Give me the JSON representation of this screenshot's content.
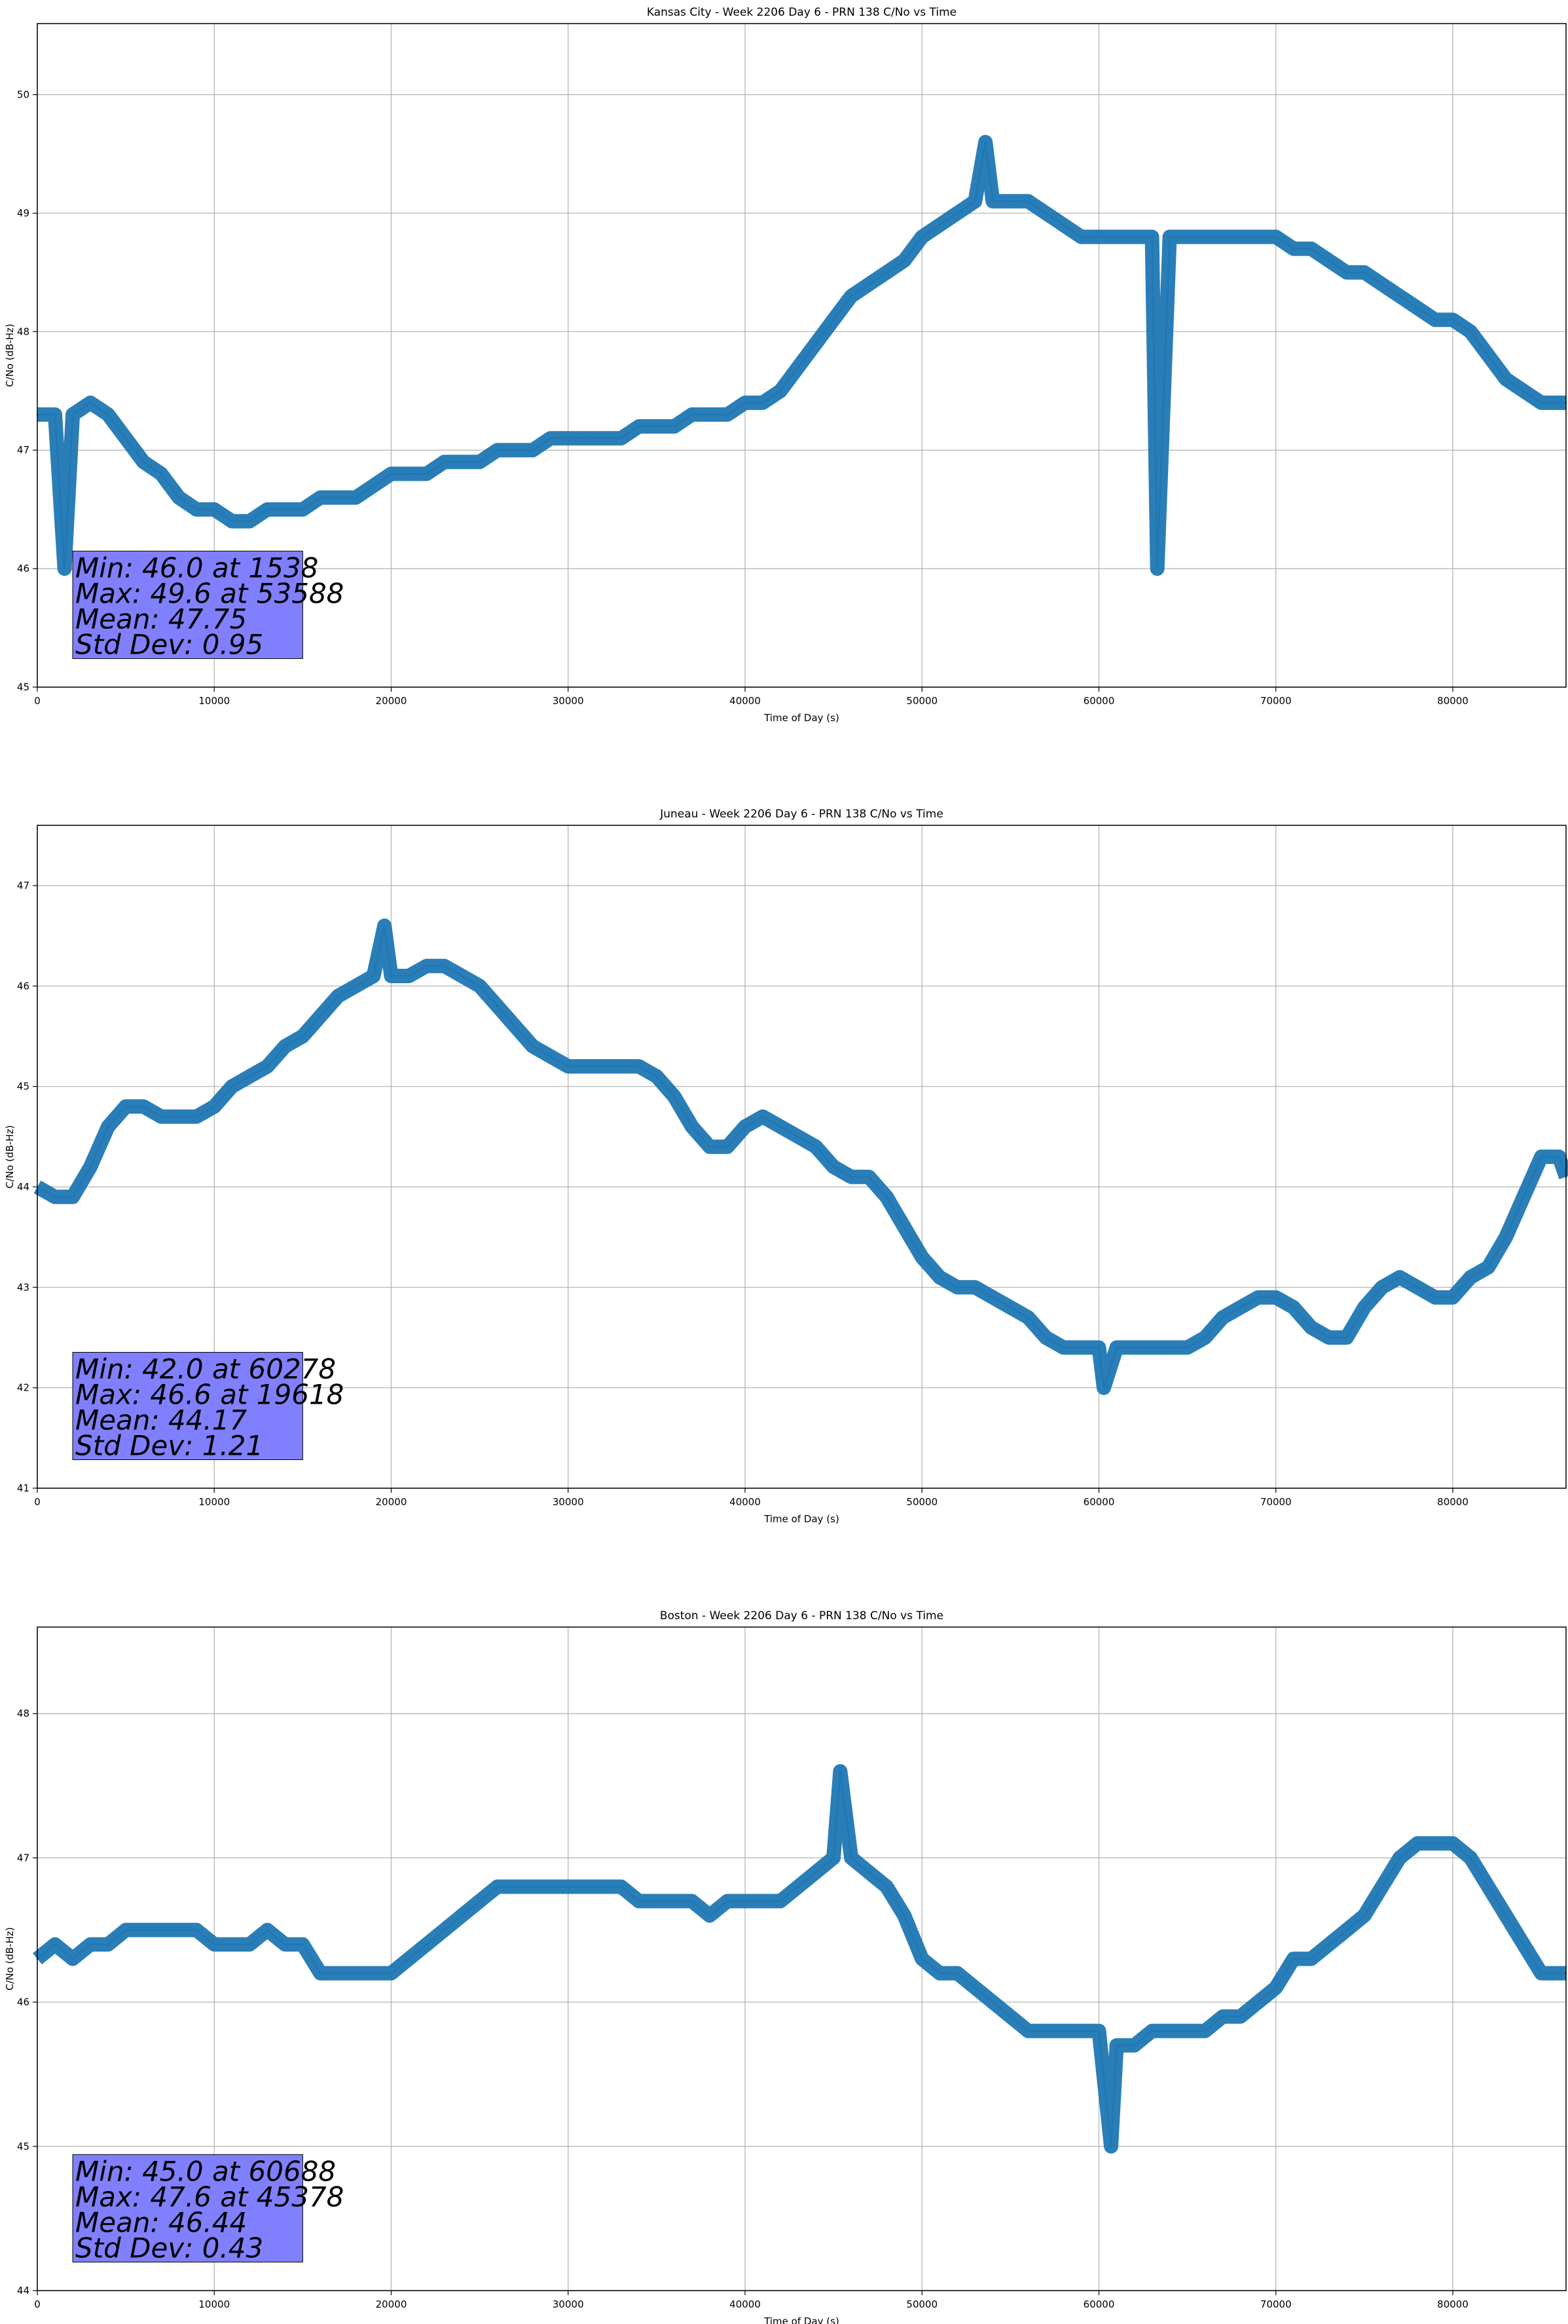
{
  "colors": {
    "line": "#1f77b4",
    "grid": "#b0b0b0",
    "stats_box_fill": "#8080ff",
    "axes": "#000000"
  },
  "chart_data": [
    {
      "type": "line",
      "title": "Kansas City - Week 2206 Day 6 - PRN 138 C/No vs Time",
      "xlabel": "Time of Day (s)",
      "ylabel": "C/No (dB-Hz)",
      "xlim": [
        0,
        86400
      ],
      "ylim": [
        45,
        50.6
      ],
      "xticks": [
        0,
        10000,
        20000,
        30000,
        40000,
        50000,
        60000,
        70000,
        80000
      ],
      "yticks": [
        45,
        46,
        47,
        48,
        49,
        50
      ],
      "grid": true,
      "series": [
        {
          "x": [
            0,
            1000,
            1538,
            2000,
            3000,
            4000,
            5000,
            6000,
            7000,
            8000,
            9000,
            10000,
            11000,
            12000,
            13000,
            14000,
            15000,
            16000,
            17000,
            18000,
            19000,
            20000,
            21000,
            22000,
            23000,
            24000,
            25000,
            26000,
            27000,
            28000,
            29000,
            30000,
            31000,
            32000,
            33000,
            34000,
            35000,
            36000,
            37000,
            38000,
            39000,
            40000,
            41000,
            42000,
            43000,
            44000,
            45000,
            46000,
            47000,
            48000,
            49000,
            50000,
            51000,
            52000,
            53000,
            53588,
            54000,
            55000,
            56000,
            57000,
            58000,
            59000,
            60000,
            61000,
            62000,
            63000,
            63300,
            64000,
            65000,
            66000,
            67000,
            68000,
            69000,
            70000,
            71000,
            72000,
            73000,
            74000,
            75000,
            76000,
            77000,
            78000,
            79000,
            80000,
            81000,
            82000,
            83000,
            84000,
            85000,
            86000,
            86400
          ],
          "y": [
            47.3,
            47.3,
            46.0,
            47.3,
            47.4,
            47.3,
            47.1,
            46.9,
            46.8,
            46.6,
            46.5,
            46.5,
            46.4,
            46.4,
            46.5,
            46.5,
            46.5,
            46.6,
            46.6,
            46.6,
            46.7,
            46.8,
            46.8,
            46.8,
            46.9,
            46.9,
            46.9,
            47.0,
            47.0,
            47.0,
            47.1,
            47.1,
            47.1,
            47.1,
            47.1,
            47.2,
            47.2,
            47.2,
            47.3,
            47.3,
            47.3,
            47.4,
            47.4,
            47.5,
            47.7,
            47.9,
            48.1,
            48.3,
            48.4,
            48.5,
            48.6,
            48.8,
            48.9,
            49.0,
            49.1,
            49.6,
            49.1,
            49.1,
            49.1,
            49.0,
            48.9,
            48.8,
            48.8,
            48.8,
            48.8,
            48.8,
            46.0,
            48.8,
            48.8,
            48.8,
            48.8,
            48.8,
            48.8,
            48.8,
            48.7,
            48.7,
            48.6,
            48.5,
            48.5,
            48.4,
            48.3,
            48.2,
            48.1,
            48.1,
            48.0,
            47.8,
            47.6,
            47.5,
            47.4,
            47.4,
            47.4
          ]
        }
      ],
      "stats": [
        "Min: 46.0 at 1538",
        "Max: 49.6 at 53588",
        "Mean: 47.75",
        "Std Dev: 0.95"
      ]
    },
    {
      "type": "line",
      "title": "Juneau - Week 2206 Day 6 - PRN 138 C/No vs Time",
      "xlabel": "Time of Day (s)",
      "ylabel": "C/No (dB-Hz)",
      "xlim": [
        0,
        86400
      ],
      "ylim": [
        41,
        47.6
      ],
      "xticks": [
        0,
        10000,
        20000,
        30000,
        40000,
        50000,
        60000,
        70000,
        80000
      ],
      "yticks": [
        41,
        42,
        43,
        44,
        45,
        46,
        47
      ],
      "grid": true,
      "series": [
        {
          "x": [
            0,
            1000,
            2000,
            3000,
            4000,
            5000,
            6000,
            7000,
            8000,
            9000,
            10000,
            11000,
            12000,
            13000,
            14000,
            15000,
            16000,
            17000,
            18000,
            19000,
            19618,
            20000,
            21000,
            22000,
            23000,
            24000,
            25000,
            26000,
            27000,
            28000,
            29000,
            30000,
            31000,
            32000,
            33000,
            34000,
            35000,
            36000,
            37000,
            38000,
            39000,
            40000,
            41000,
            42000,
            43000,
            44000,
            45000,
            46000,
            47000,
            48000,
            49000,
            50000,
            51000,
            52000,
            53000,
            54000,
            55000,
            56000,
            57000,
            58000,
            59000,
            60000,
            60278,
            61000,
            62000,
            63000,
            64000,
            65000,
            66000,
            67000,
            68000,
            69000,
            70000,
            71000,
            72000,
            73000,
            74000,
            75000,
            76000,
            77000,
            78000,
            79000,
            80000,
            81000,
            82000,
            83000,
            84000,
            85000,
            86000,
            86400
          ],
          "y": [
            44.0,
            43.9,
            43.9,
            44.2,
            44.6,
            44.8,
            44.8,
            44.7,
            44.7,
            44.7,
            44.8,
            45.0,
            45.1,
            45.2,
            45.4,
            45.5,
            45.7,
            45.9,
            46.0,
            46.1,
            46.6,
            46.1,
            46.1,
            46.2,
            46.2,
            46.1,
            46.0,
            45.8,
            45.6,
            45.4,
            45.3,
            45.2,
            45.2,
            45.2,
            45.2,
            45.2,
            45.1,
            44.9,
            44.6,
            44.4,
            44.4,
            44.6,
            44.7,
            44.6,
            44.5,
            44.4,
            44.2,
            44.1,
            44.1,
            43.9,
            43.6,
            43.3,
            43.1,
            43.0,
            43.0,
            42.9,
            42.8,
            42.7,
            42.5,
            42.4,
            42.4,
            42.4,
            42.0,
            42.4,
            42.4,
            42.4,
            42.4,
            42.4,
            42.5,
            42.7,
            42.8,
            42.9,
            42.9,
            42.8,
            42.6,
            42.5,
            42.5,
            42.8,
            43.0,
            43.1,
            43.0,
            42.9,
            42.9,
            43.1,
            43.2,
            43.5,
            43.9,
            44.3,
            44.3,
            44.1
          ],
          "name": ""
        }
      ],
      "stats": [
        "Min: 42.0 at 60278",
        "Max: 46.6 at 19618",
        "Mean: 44.17",
        "Std Dev: 1.21"
      ]
    },
    {
      "type": "line",
      "title": "Boston - Week 2206 Day 6 - PRN 138 C/No vs Time",
      "xlabel": "Time of Day (s)",
      "ylabel": "C/No (dB-Hz)",
      "xlim": [
        0,
        86400
      ],
      "ylim": [
        44,
        48.6
      ],
      "xticks": [
        0,
        10000,
        20000,
        30000,
        40000,
        50000,
        60000,
        70000,
        80000
      ],
      "yticks": [
        44,
        45,
        46,
        47,
        48
      ],
      "grid": true,
      "series": [
        {
          "x": [
            0,
            1000,
            2000,
            3000,
            4000,
            5000,
            6000,
            7000,
            8000,
            9000,
            10000,
            11000,
            12000,
            13000,
            14000,
            15000,
            16000,
            17000,
            18000,
            19000,
            20000,
            21000,
            22000,
            23000,
            24000,
            25000,
            26000,
            27000,
            28000,
            29000,
            30000,
            31000,
            32000,
            33000,
            34000,
            35000,
            36000,
            37000,
            38000,
            39000,
            40000,
            41000,
            42000,
            43000,
            44000,
            45000,
            45378,
            46000,
            47000,
            48000,
            49000,
            50000,
            51000,
            52000,
            53000,
            54000,
            55000,
            56000,
            57000,
            58000,
            59000,
            60000,
            60688,
            61000,
            62000,
            63000,
            64000,
            65000,
            66000,
            67000,
            68000,
            69000,
            70000,
            71000,
            72000,
            73000,
            74000,
            75000,
            76000,
            77000,
            78000,
            79000,
            80000,
            81000,
            82000,
            83000,
            84000,
            85000,
            86000,
            86400
          ],
          "y": [
            46.3,
            46.4,
            46.3,
            46.4,
            46.4,
            46.5,
            46.5,
            46.5,
            46.5,
            46.5,
            46.4,
            46.4,
            46.4,
            46.5,
            46.4,
            46.4,
            46.2,
            46.2,
            46.2,
            46.2,
            46.2,
            46.3,
            46.4,
            46.5,
            46.6,
            46.7,
            46.8,
            46.8,
            46.8,
            46.8,
            46.8,
            46.8,
            46.8,
            46.8,
            46.7,
            46.7,
            46.7,
            46.7,
            46.6,
            46.7,
            46.7,
            46.7,
            46.7,
            46.8,
            46.9,
            47.0,
            47.6,
            47.0,
            46.9,
            46.8,
            46.6,
            46.3,
            46.2,
            46.2,
            46.1,
            46.0,
            45.9,
            45.8,
            45.8,
            45.8,
            45.8,
            45.8,
            45.0,
            45.7,
            45.7,
            45.8,
            45.8,
            45.8,
            45.8,
            45.9,
            45.9,
            46.0,
            46.1,
            46.3,
            46.3,
            46.4,
            46.5,
            46.6,
            46.8,
            47.0,
            47.1,
            47.1,
            47.1,
            47.0,
            46.8,
            46.6,
            46.4,
            46.2,
            46.2,
            46.2
          ],
          "name": ""
        }
      ],
      "stats": [
        "Min: 45.0 at 60688",
        "Max: 47.6 at 45378",
        "Mean: 46.44",
        "Std Dev: 0.43"
      ]
    }
  ]
}
